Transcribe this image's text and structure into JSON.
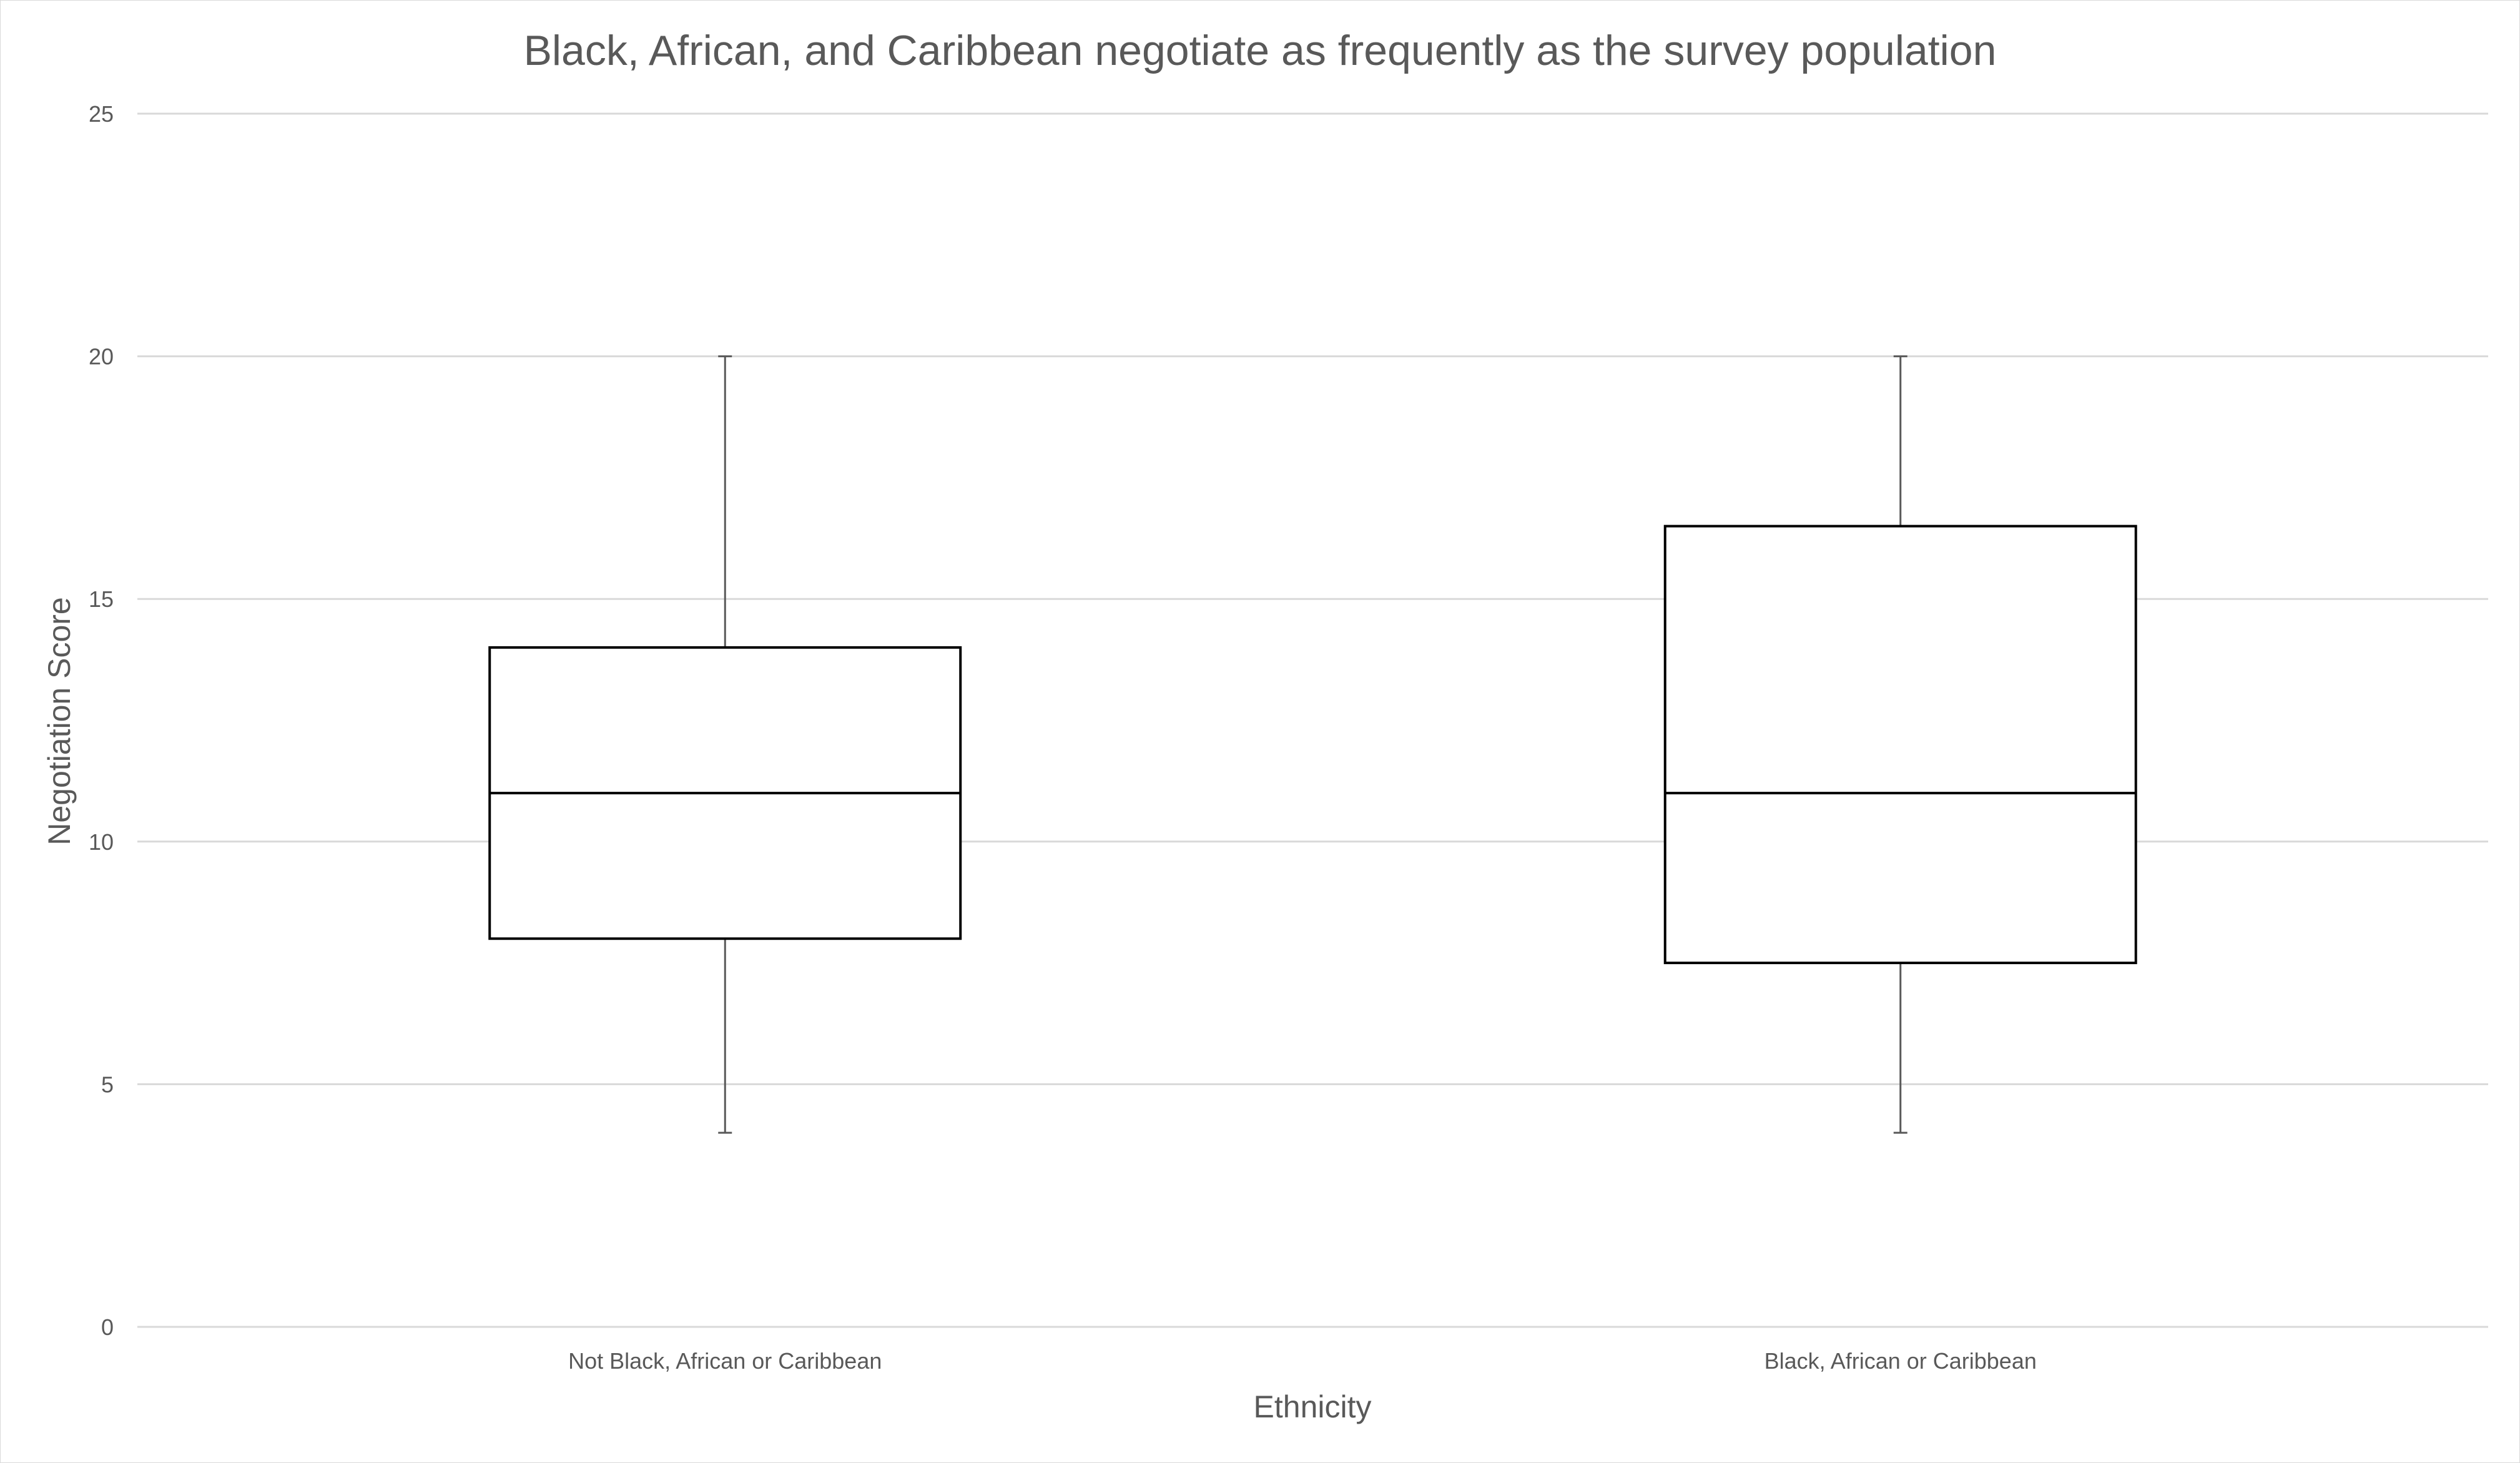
{
  "chart_data": {
    "type": "box",
    "title": "Black, African, and Caribbean negotiate as frequently as the survey population",
    "xlabel": "Ethnicity",
    "ylabel": "Negotiation Score",
    "ylim": [
      0,
      25
    ],
    "yticks": [
      0,
      5,
      10,
      15,
      20,
      25
    ],
    "grid": true,
    "categories": [
      "Not Black, African or Caribbean",
      "Black, African or Caribbean"
    ],
    "boxes": [
      {
        "category": "Not Black, African or Caribbean",
        "min": 4,
        "q1": 8,
        "median": 11,
        "q3": 14,
        "max": 20
      },
      {
        "category": "Black, African or Caribbean",
        "min": 4,
        "q1": 7.5,
        "median": 11,
        "q3": 16.5,
        "max": 20
      }
    ],
    "colors": {
      "text": "#595959",
      "grid": "#d9d9d9",
      "box_stroke": "#000000",
      "box_fill": "#ffffff",
      "whisker": "#595959"
    }
  }
}
